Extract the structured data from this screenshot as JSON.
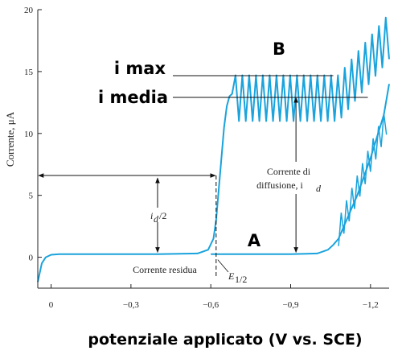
{
  "chart_data": {
    "type": "line",
    "title": "",
    "xlabel": "potenziale applicato (V vs. SCE)",
    "ylabel": "Corrente, μA",
    "xlim": [
      0.05,
      -1.27
    ],
    "ylim": [
      -2.5,
      20
    ],
    "x_ticks": [
      0,
      -0.3,
      -0.6,
      -0.9,
      -1.2
    ],
    "x_tick_labels": [
      "0",
      "−0,3",
      "−0,6",
      "−0,9",
      "−1,2"
    ],
    "y_ticks": [
      0,
      5,
      10,
      15,
      20
    ],
    "y_tick_labels": [
      "0",
      "5",
      "10",
      "15",
      "20"
    ],
    "grid": false,
    "series": [
      {
        "name": "",
        "color": "#1aa3dc",
        "description_points": {
          "x": [
            0.05,
            0.035,
            0.02,
            0.0,
            -0.03,
            -0.06,
            -0.2,
            -0.4,
            -0.55,
            -0.59,
            -0.61,
            -0.62,
            -0.63,
            -0.64,
            -0.65,
            -0.66,
            -0.67,
            -0.68
          ],
          "y": [
            -2.0,
            -0.5,
            0.0,
            0.2,
            0.25,
            0.25,
            0.25,
            0.25,
            0.3,
            0.6,
            1.5,
            3.0,
            5.5,
            8.0,
            10.5,
            12.2,
            13.0,
            13.2
          ]
        },
        "oscillation": {
          "x_start": -0.68,
          "x_end": -1.27,
          "min_start": 11.0,
          "max_start": 14.7
        }
      },
      {
        "name": "",
        "color": "#1aa3dc",
        "description_points": {
          "x": [
            -0.6,
            -0.9,
            -1.0,
            -1.04,
            -1.06,
            -1.08,
            -1.1,
            -1.15,
            -1.2,
            -1.25,
            -1.27
          ],
          "y": [
            0.25,
            0.25,
            0.3,
            0.6,
            1.0,
            1.5,
            2.5,
            5.0,
            8.0,
            11.5,
            14.0
          ]
        }
      }
    ],
    "annotations": {
      "i_max_label": "i max",
      "i_media_label": "i media",
      "label_B": "B",
      "label_A": "A",
      "corrente_residua": "Corrente residua",
      "corrente_diffusione_line1": "Corrente di",
      "corrente_diffusione_line2": "diffusione, i",
      "corrente_diffusione_sub": "d",
      "id_half": "i",
      "id_half_sub": "d",
      "id_half_tail": "/2",
      "e_half": "E",
      "e_half_sub": "1/2"
    }
  }
}
